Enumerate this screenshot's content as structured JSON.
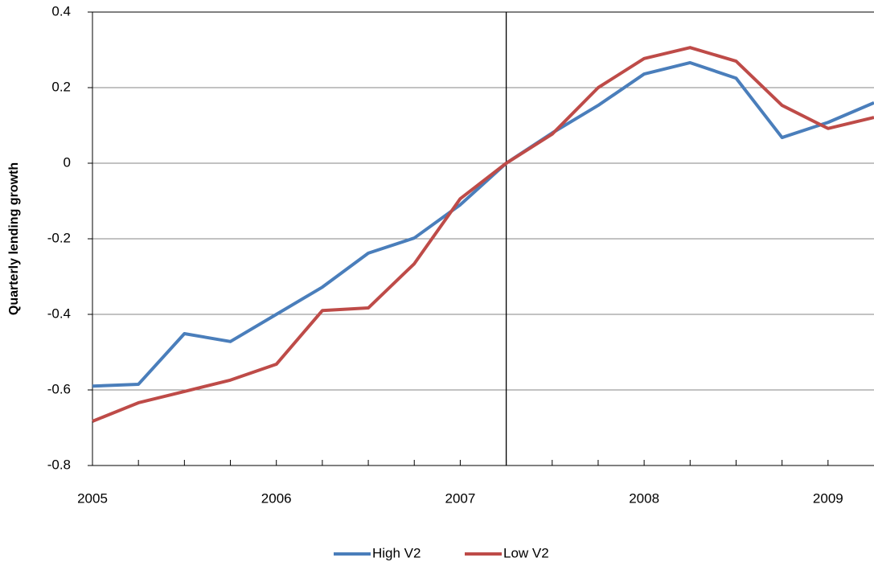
{
  "chart_data": {
    "type": "line",
    "y_label": "Quarterly lending growth",
    "x": [
      2005,
      2005.25,
      2005.5,
      2005.75,
      2006,
      2006.25,
      2006.5,
      2006.75,
      2007,
      2007.25,
      2007.5,
      2007.75,
      2008,
      2008.25,
      2008.5,
      2008.75,
      2009,
      2009.25
    ],
    "series": [
      {
        "name": "High V2",
        "color": "#4a7ebb",
        "values": [
          -0.59,
          -0.585,
          -0.451,
          -0.472,
          -0.4,
          -0.328,
          -0.238,
          -0.198,
          -0.11,
          0,
          0.08,
          0.153,
          0.236,
          0.266,
          0.225,
          0.068,
          0.108,
          0.16
        ]
      },
      {
        "name": "Low V2",
        "color": "#be4b48",
        "values": [
          -0.683,
          -0.634,
          -0.604,
          -0.574,
          -0.532,
          -0.39,
          -0.383,
          -0.266,
          -0.094,
          0,
          0.077,
          0.2,
          0.277,
          0.306,
          0.27,
          0.153,
          0.092,
          0.121
        ]
      }
    ],
    "xlim": [
      2005,
      2009.25
    ],
    "xticks": [
      2005,
      2006,
      2007,
      2008,
      2009
    ],
    "xticks_minor": [
      2005,
      2005.25,
      2005.5,
      2005.75,
      2006,
      2006.25,
      2006.5,
      2006.75,
      2007,
      2007.25,
      2007.5,
      2007.75,
      2008,
      2008.25,
      2008.5,
      2008.75,
      2009
    ],
    "ylim": [
      -0.8,
      0.4
    ],
    "yticks": [
      -0.8,
      -0.6,
      -0.4,
      -0.2,
      0,
      0.2,
      0.4
    ],
    "grid": true,
    "vline": 2007.25,
    "legend": "bottom"
  }
}
